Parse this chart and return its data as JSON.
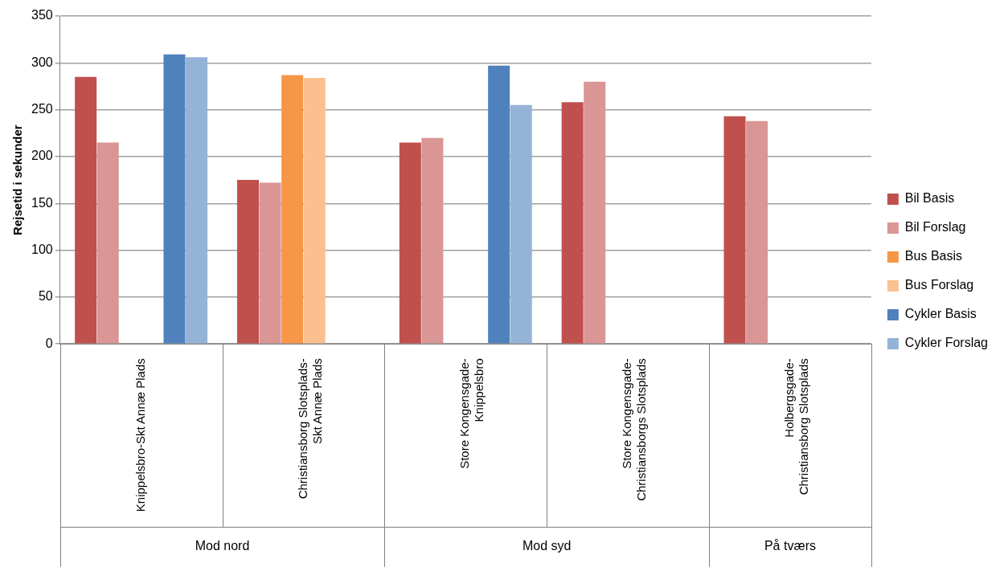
{
  "chart_data": {
    "type": "bar",
    "ylabel": "Rejsetid i sekunder",
    "categories": [
      "Knippelsbro-Skt Annæ Plads",
      "Christiansborg Slotsplads-Skt Annæ Plads",
      "Store Kongensgade-Knippelsbro",
      "Store Kongensgade-Christiansborgs Slotsplads",
      "Holbergsgade-Christiansborg Slotsplads"
    ],
    "series": [
      {
        "name": "Bil Basis",
        "color": "#c0504d",
        "values": [
          285,
          175,
          215,
          258,
          243
        ]
      },
      {
        "name": "Bil Forslag",
        "color": "#d99694",
        "values": [
          215,
          172,
          220,
          280,
          238
        ]
      },
      {
        "name": "Bus Basis",
        "color": "#f79646",
        "values": [
          null,
          287,
          null,
          null,
          null
        ]
      },
      {
        "name": "Bus Forslag",
        "color": "#fac090",
        "values": [
          null,
          284,
          null,
          null,
          null
        ]
      },
      {
        "name": "Cykler Basis",
        "color": "#4f81bd",
        "values": [
          309,
          null,
          297,
          null,
          null
        ]
      },
      {
        "name": "Cykler Forslag",
        "color": "#95b3d7",
        "values": [
          306,
          null,
          255,
          null,
          null
        ]
      }
    ],
    "ylim": [
      0,
      350
    ],
    "yticks": [
      0,
      50,
      100,
      150,
      200,
      250,
      300,
      350
    ],
    "grid": "y",
    "legend": "right",
    "annotations": [
      "Mod nord",
      "Mod syd",
      "På tværs"
    ]
  }
}
